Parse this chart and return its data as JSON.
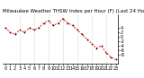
{
  "title": "Milwaukee Weather THSW Index per Hour (F) (Last 24 Hours)",
  "hours": [
    0,
    1,
    2,
    3,
    4,
    5,
    6,
    7,
    8,
    9,
    10,
    11,
    12,
    13,
    14,
    15,
    16,
    17,
    18,
    19,
    20,
    21,
    22,
    23
  ],
  "values": [
    4,
    2,
    1,
    3,
    2,
    4,
    3,
    4,
    6,
    7,
    5,
    6,
    8,
    6,
    5,
    3,
    1,
    -1,
    -3,
    -5,
    -4,
    -7,
    -9,
    -10
  ],
  "line_color": "#ff0000",
  "marker_color": "#000000",
  "bg_color": "#ffffff",
  "grid_color": "#aaaaaa",
  "ylim_min": -12,
  "ylim_max": 10,
  "yticks": [
    4,
    2,
    0,
    -2,
    -4,
    -6,
    -8
  ],
  "xtick_positions": [
    0,
    1,
    2,
    3,
    4,
    5,
    6,
    7,
    8,
    9,
    10,
    11,
    12,
    13,
    14,
    15,
    16,
    17,
    18,
    19,
    20,
    21,
    22,
    23
  ],
  "vgrid_positions": [
    3,
    6,
    9,
    12,
    15,
    18,
    21
  ],
  "tick_fontsize": 3.5,
  "title_fontsize": 4.0,
  "linewidth": 0.7,
  "markersize": 1.8
}
